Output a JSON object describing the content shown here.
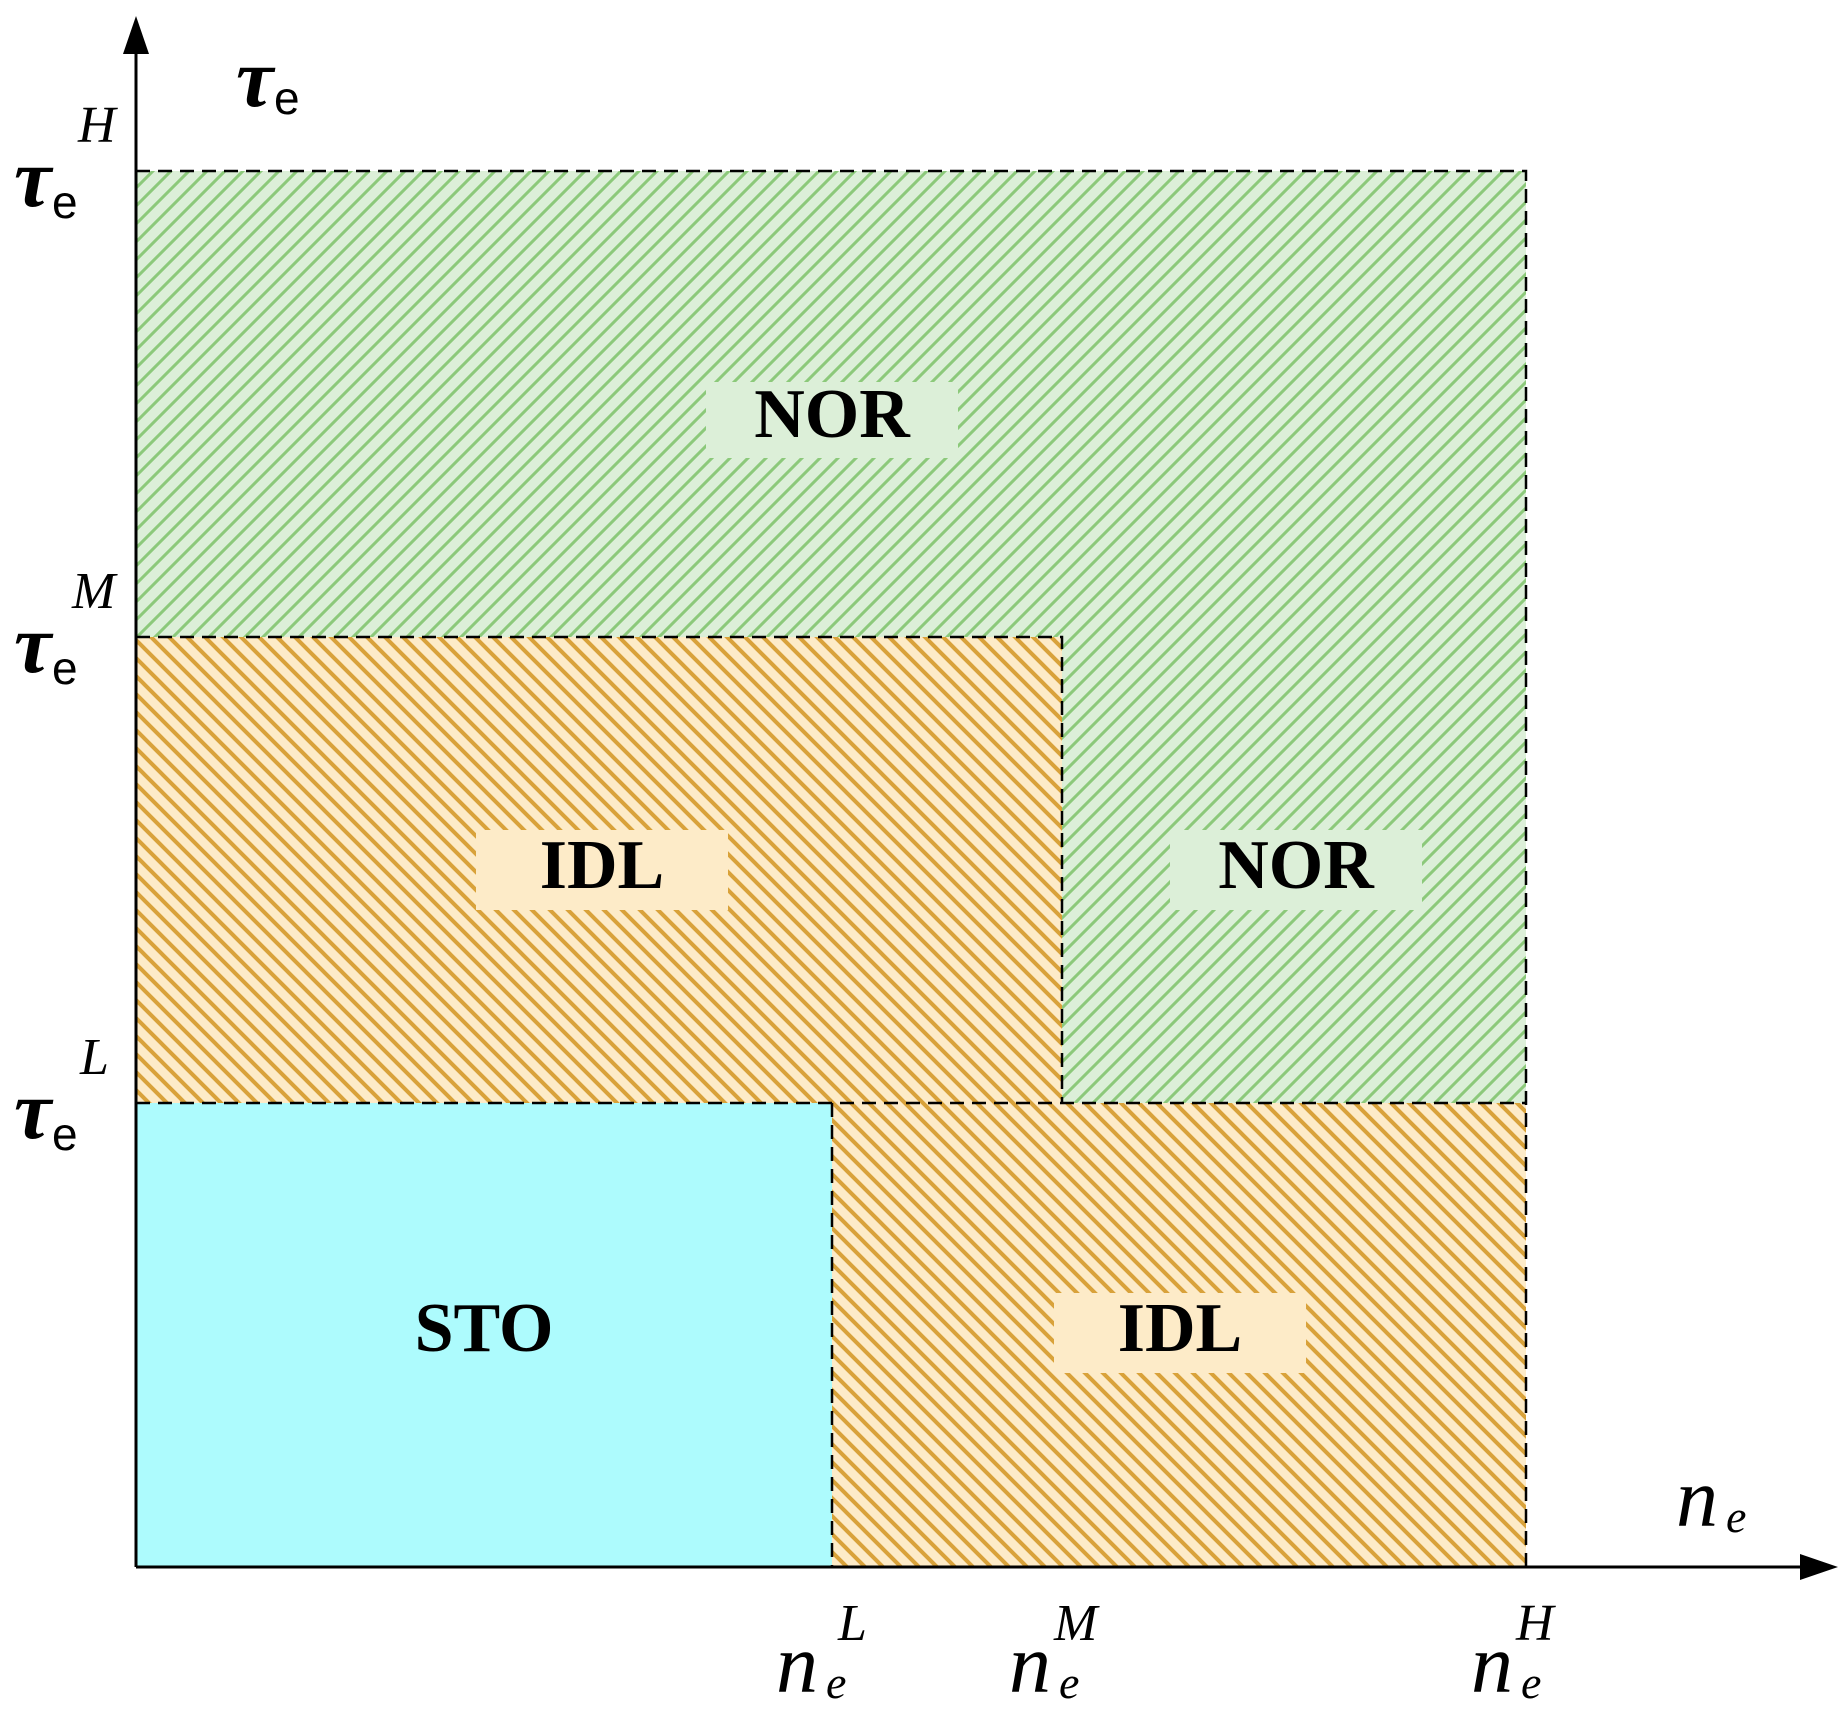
{
  "axes": {
    "y_label": {
      "base": "τ",
      "sub": "e"
    },
    "x_label": {
      "base": "n",
      "sub": "e"
    }
  },
  "y_ticks": [
    {
      "base": "τ",
      "sub": "e",
      "sup": "H"
    },
    {
      "base": "τ",
      "sub": "e",
      "sup": "M"
    },
    {
      "base": "τ",
      "sub": "e",
      "sup": "L"
    }
  ],
  "x_ticks": [
    {
      "base": "n",
      "sub": "e",
      "sup": "L"
    },
    {
      "base": "n",
      "sub": "e",
      "sup": "M"
    },
    {
      "base": "n",
      "sub": "e",
      "sup": "H"
    }
  ],
  "regions": [
    {
      "label": "NOR"
    },
    {
      "label": "IDL"
    },
    {
      "label": "NOR"
    },
    {
      "label": "STO"
    },
    {
      "label": "IDL"
    }
  ]
}
